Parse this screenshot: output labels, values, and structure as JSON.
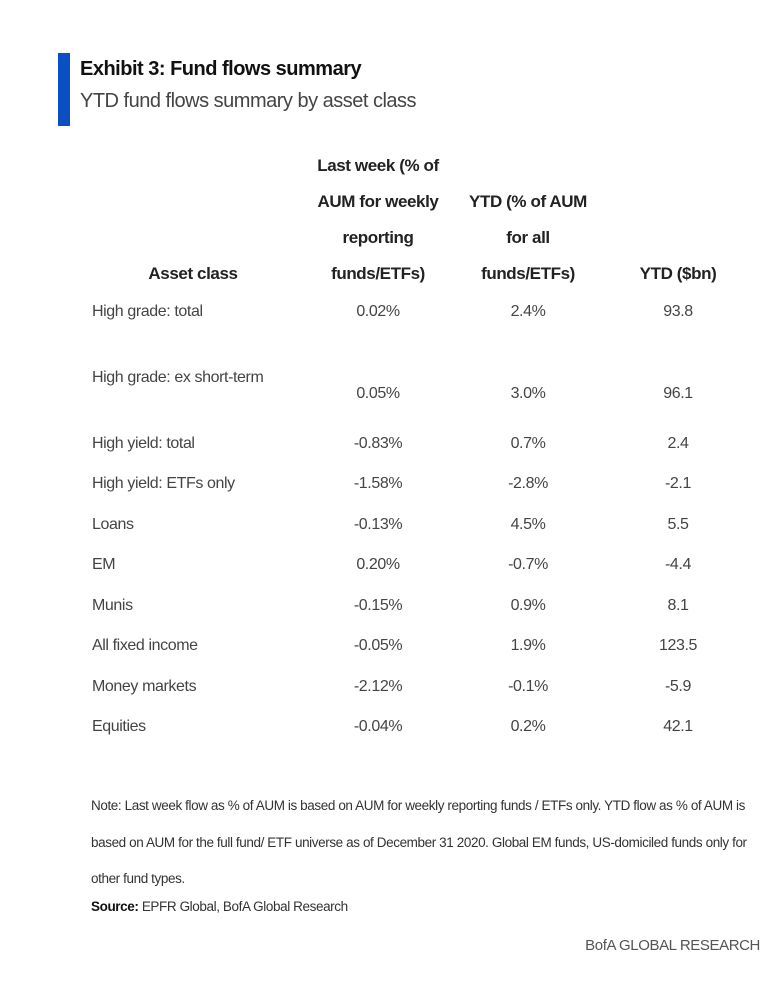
{
  "header": {
    "title": "Exhibit 3: Fund flows summary",
    "subtitle": "YTD fund flows summary by asset class",
    "accent_color": "#0a4fc4"
  },
  "table": {
    "columns": [
      "Asset class",
      "Last week (% of AUM for weekly reporting funds/ETFs)",
      "YTD (% of AUM for all funds/ETFs)",
      "YTD ($bn)"
    ],
    "rows": [
      [
        "High grade: total",
        "0.02%",
        "2.4%",
        "93.8"
      ],
      [
        "High grade: ex short-term",
        "0.05%",
        "3.0%",
        "96.1"
      ],
      [
        "High yield: total",
        "-0.83%",
        "0.7%",
        "2.4"
      ],
      [
        "High yield: ETFs only",
        "-1.58%",
        "-2.8%",
        "-2.1"
      ],
      [
        "Loans",
        "-0.13%",
        "4.5%",
        "5.5"
      ],
      [
        "EM",
        "0.20%",
        "-0.7%",
        "-4.4"
      ],
      [
        "Munis",
        "-0.15%",
        "0.9%",
        "8.1"
      ],
      [
        "All fixed income",
        "-0.05%",
        "1.9%",
        "123.5"
      ],
      [
        "Money markets",
        "-2.12%",
        "-0.1%",
        "-5.9"
      ],
      [
        "Equities",
        "-0.04%",
        "0.2%",
        "42.1"
      ]
    ]
  },
  "note": "Note: Last week flow as % of AUM is based on AUM for weekly reporting funds / ETFs only. YTD flow as % of AUM is based on AUM for the full fund/ ETF universe as of December 31 2020. Global EM funds, US-domiciled funds only for other fund types.",
  "source": {
    "label": "Source:",
    "text": " EPFR Global, BofA Global Research"
  },
  "footer": "BofA GLOBAL RESEARCH"
}
